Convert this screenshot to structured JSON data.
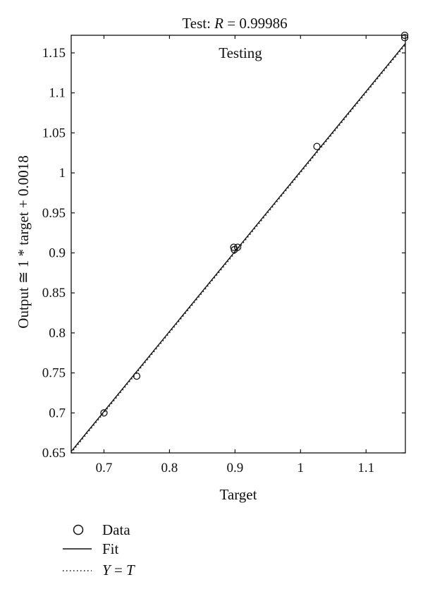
{
  "chart_data": {
    "type": "scatter",
    "title_prefix": "Test: ",
    "title_var": "R",
    "title_eq": " = 0.99986",
    "annotation": "Testing",
    "xlabel": "Target",
    "ylabel": "Output ≅ 1 * target + 0.0018",
    "xlim": [
      0.65,
      1.16
    ],
    "ylim": [
      0.65,
      1.172
    ],
    "x_ticks": [
      0.7,
      0.8,
      0.9,
      1.0,
      1.1
    ],
    "x_tick_labels": [
      "0.7",
      "0.8",
      "0.9",
      "1",
      "1.1"
    ],
    "y_ticks": [
      0.65,
      0.7,
      0.75,
      0.8,
      0.85,
      0.9,
      0.95,
      1.0,
      1.05,
      1.1,
      1.15
    ],
    "y_tick_labels": [
      "0.65",
      "0.7",
      "0.75",
      "0.8",
      "0.85",
      "0.9",
      "0.95",
      "1",
      "1.05",
      "1.1",
      "1.15"
    ],
    "grid": false,
    "series": [
      {
        "name": "Data",
        "marker": "circle",
        "points": [
          {
            "x": 0.7,
            "y": 0.7
          },
          {
            "x": 0.75,
            "y": 0.746
          },
          {
            "x": 0.898,
            "y": 0.907
          },
          {
            "x": 0.899,
            "y": 0.904
          },
          {
            "x": 0.904,
            "y": 0.907
          },
          {
            "x": 1.025,
            "y": 1.033
          },
          {
            "x": 1.159,
            "y": 1.169
          },
          {
            "x": 1.159,
            "y": 1.172
          }
        ]
      },
      {
        "name": "Fit",
        "style": "solid",
        "slope": 1,
        "intercept": 0.0018
      },
      {
        "name": "Y = T",
        "style": "dotted",
        "slope": 1,
        "intercept": 0
      }
    ],
    "legend": {
      "placement": "bottom-left",
      "items": [
        {
          "kind": "marker",
          "label": "Data"
        },
        {
          "kind": "solid",
          "label": "Fit"
        },
        {
          "kind": "dotted",
          "label_var1": "Y",
          "label_eq": " = ",
          "label_var2": "T"
        }
      ]
    },
    "colors": {
      "ink": "#111111",
      "background": "#ffffff"
    }
  }
}
